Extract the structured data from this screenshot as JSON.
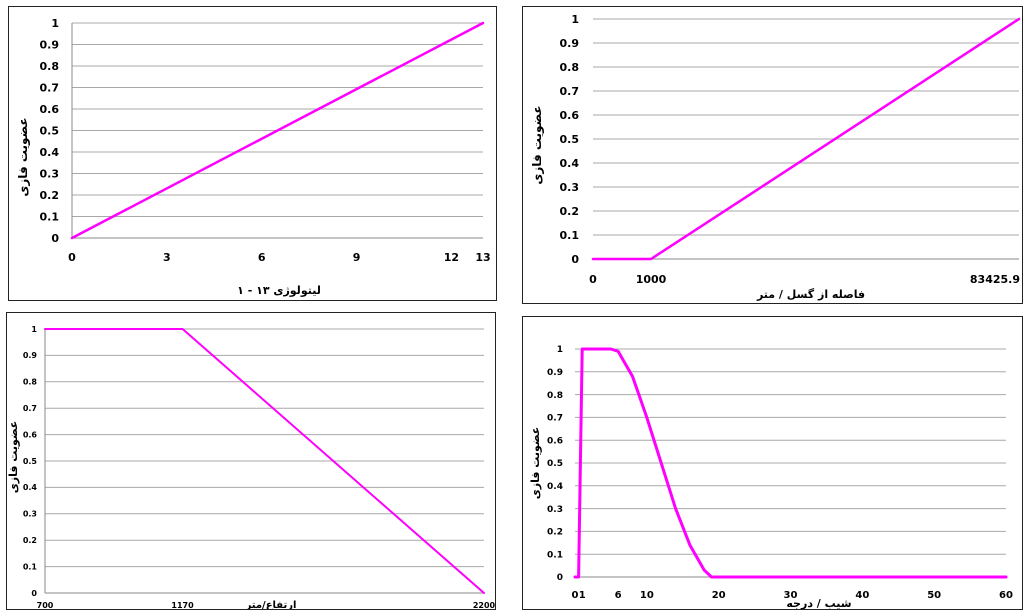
{
  "series_color": "#ff00ff",
  "chart_data": [
    {
      "type": "line",
      "title": "",
      "xlabel": "لیتولوژی ۱۳ - ۱",
      "ylabel": "عضویت فازی",
      "xlim": [
        0,
        13
      ],
      "ylim": [
        0,
        1
      ],
      "x_ticks": [
        0,
        3,
        6,
        9,
        12,
        13
      ],
      "x_tick_labels": [
        "0",
        "3",
        "6",
        "9",
        "12",
        "13"
      ],
      "y_ticks": [
        0,
        0.1,
        0.2,
        0.3,
        0.4,
        0.5,
        0.6,
        0.7,
        0.8,
        0.9,
        1
      ],
      "y_tick_labels": [
        "0",
        "0.1",
        "0.2",
        "0.3",
        "0.4",
        "0.5",
        "0.6",
        "0.7",
        "0.8",
        "0.9",
        "1"
      ],
      "grid": true,
      "series": [
        {
          "x": [
            0,
            13
          ],
          "y": [
            0,
            1
          ]
        }
      ]
    },
    {
      "type": "line",
      "title": "",
      "xlabel": "فاصله از گسل / متر",
      "ylabel": "عضویت فازی",
      "xlim": [
        0,
        83425.9
      ],
      "ylim": [
        0,
        1
      ],
      "x_tick_labels": [
        "0",
        "1000",
        "83425.9"
      ],
      "y_ticks": [
        0,
        0.1,
        0.2,
        0.3,
        0.4,
        0.5,
        0.6,
        0.7,
        0.8,
        0.9,
        1
      ],
      "y_tick_labels": [
        "0",
        "0.1",
        "0.2",
        "0.3",
        "0.4",
        "0.5",
        "0.6",
        "0.7",
        "0.8",
        "0.9",
        "1"
      ],
      "grid": true,
      "series": [
        {
          "x": [
            0,
            1000,
            83425.9
          ],
          "y": [
            0,
            0,
            1
          ]
        }
      ]
    },
    {
      "type": "line",
      "title": "",
      "xlabel": "ارتفاع/متر",
      "ylabel": "عضویت فازی",
      "xlim": [
        700,
        2200
      ],
      "ylim": [
        0,
        1
      ],
      "x_ticks": [
        700,
        1170,
        2200
      ],
      "x_tick_labels": [
        "700",
        "1170",
        "2200"
      ],
      "y_ticks": [
        0,
        0.1,
        0.2,
        0.3,
        0.4,
        0.5,
        0.6,
        0.7,
        0.8,
        0.9,
        1
      ],
      "y_tick_labels": [
        "0",
        "0.1",
        "0.2",
        "0.3",
        "0.4",
        "0.5",
        "0.6",
        "0.7",
        "0.8",
        "0.9",
        "1"
      ],
      "grid": true,
      "series": [
        {
          "x": [
            700,
            1170,
            2200
          ],
          "y": [
            1,
            1,
            0
          ]
        }
      ]
    },
    {
      "type": "line",
      "title": "",
      "xlabel": "شیب / درجه",
      "ylabel": "عضویت فازی",
      "xlim": [
        0,
        60
      ],
      "ylim": [
        0,
        1
      ],
      "x_ticks": [
        0,
        1,
        6,
        10,
        20,
        30,
        40,
        50,
        60
      ],
      "x_tick_labels": [
        "0",
        "1",
        "6",
        "10",
        "20",
        "30",
        "40",
        "50",
        "60"
      ],
      "y_ticks": [
        0,
        0.1,
        0.2,
        0.3,
        0.4,
        0.5,
        0.6,
        0.7,
        0.8,
        0.9,
        1
      ],
      "y_tick_labels": [
        "0",
        "0.1",
        "0.2",
        "0.3",
        "0.4",
        "0.5",
        "0.6",
        "0.7",
        "0.8",
        "0.9",
        "1"
      ],
      "grid": true,
      "series": [
        {
          "x": [
            0,
            0.5,
            1,
            5,
            6,
            8,
            10,
            12,
            14,
            16,
            18,
            19,
            20,
            60
          ],
          "y": [
            0,
            0,
            1,
            1,
            0.99,
            0.88,
            0.7,
            0.5,
            0.3,
            0.14,
            0.03,
            0,
            0,
            0
          ]
        }
      ]
    }
  ]
}
